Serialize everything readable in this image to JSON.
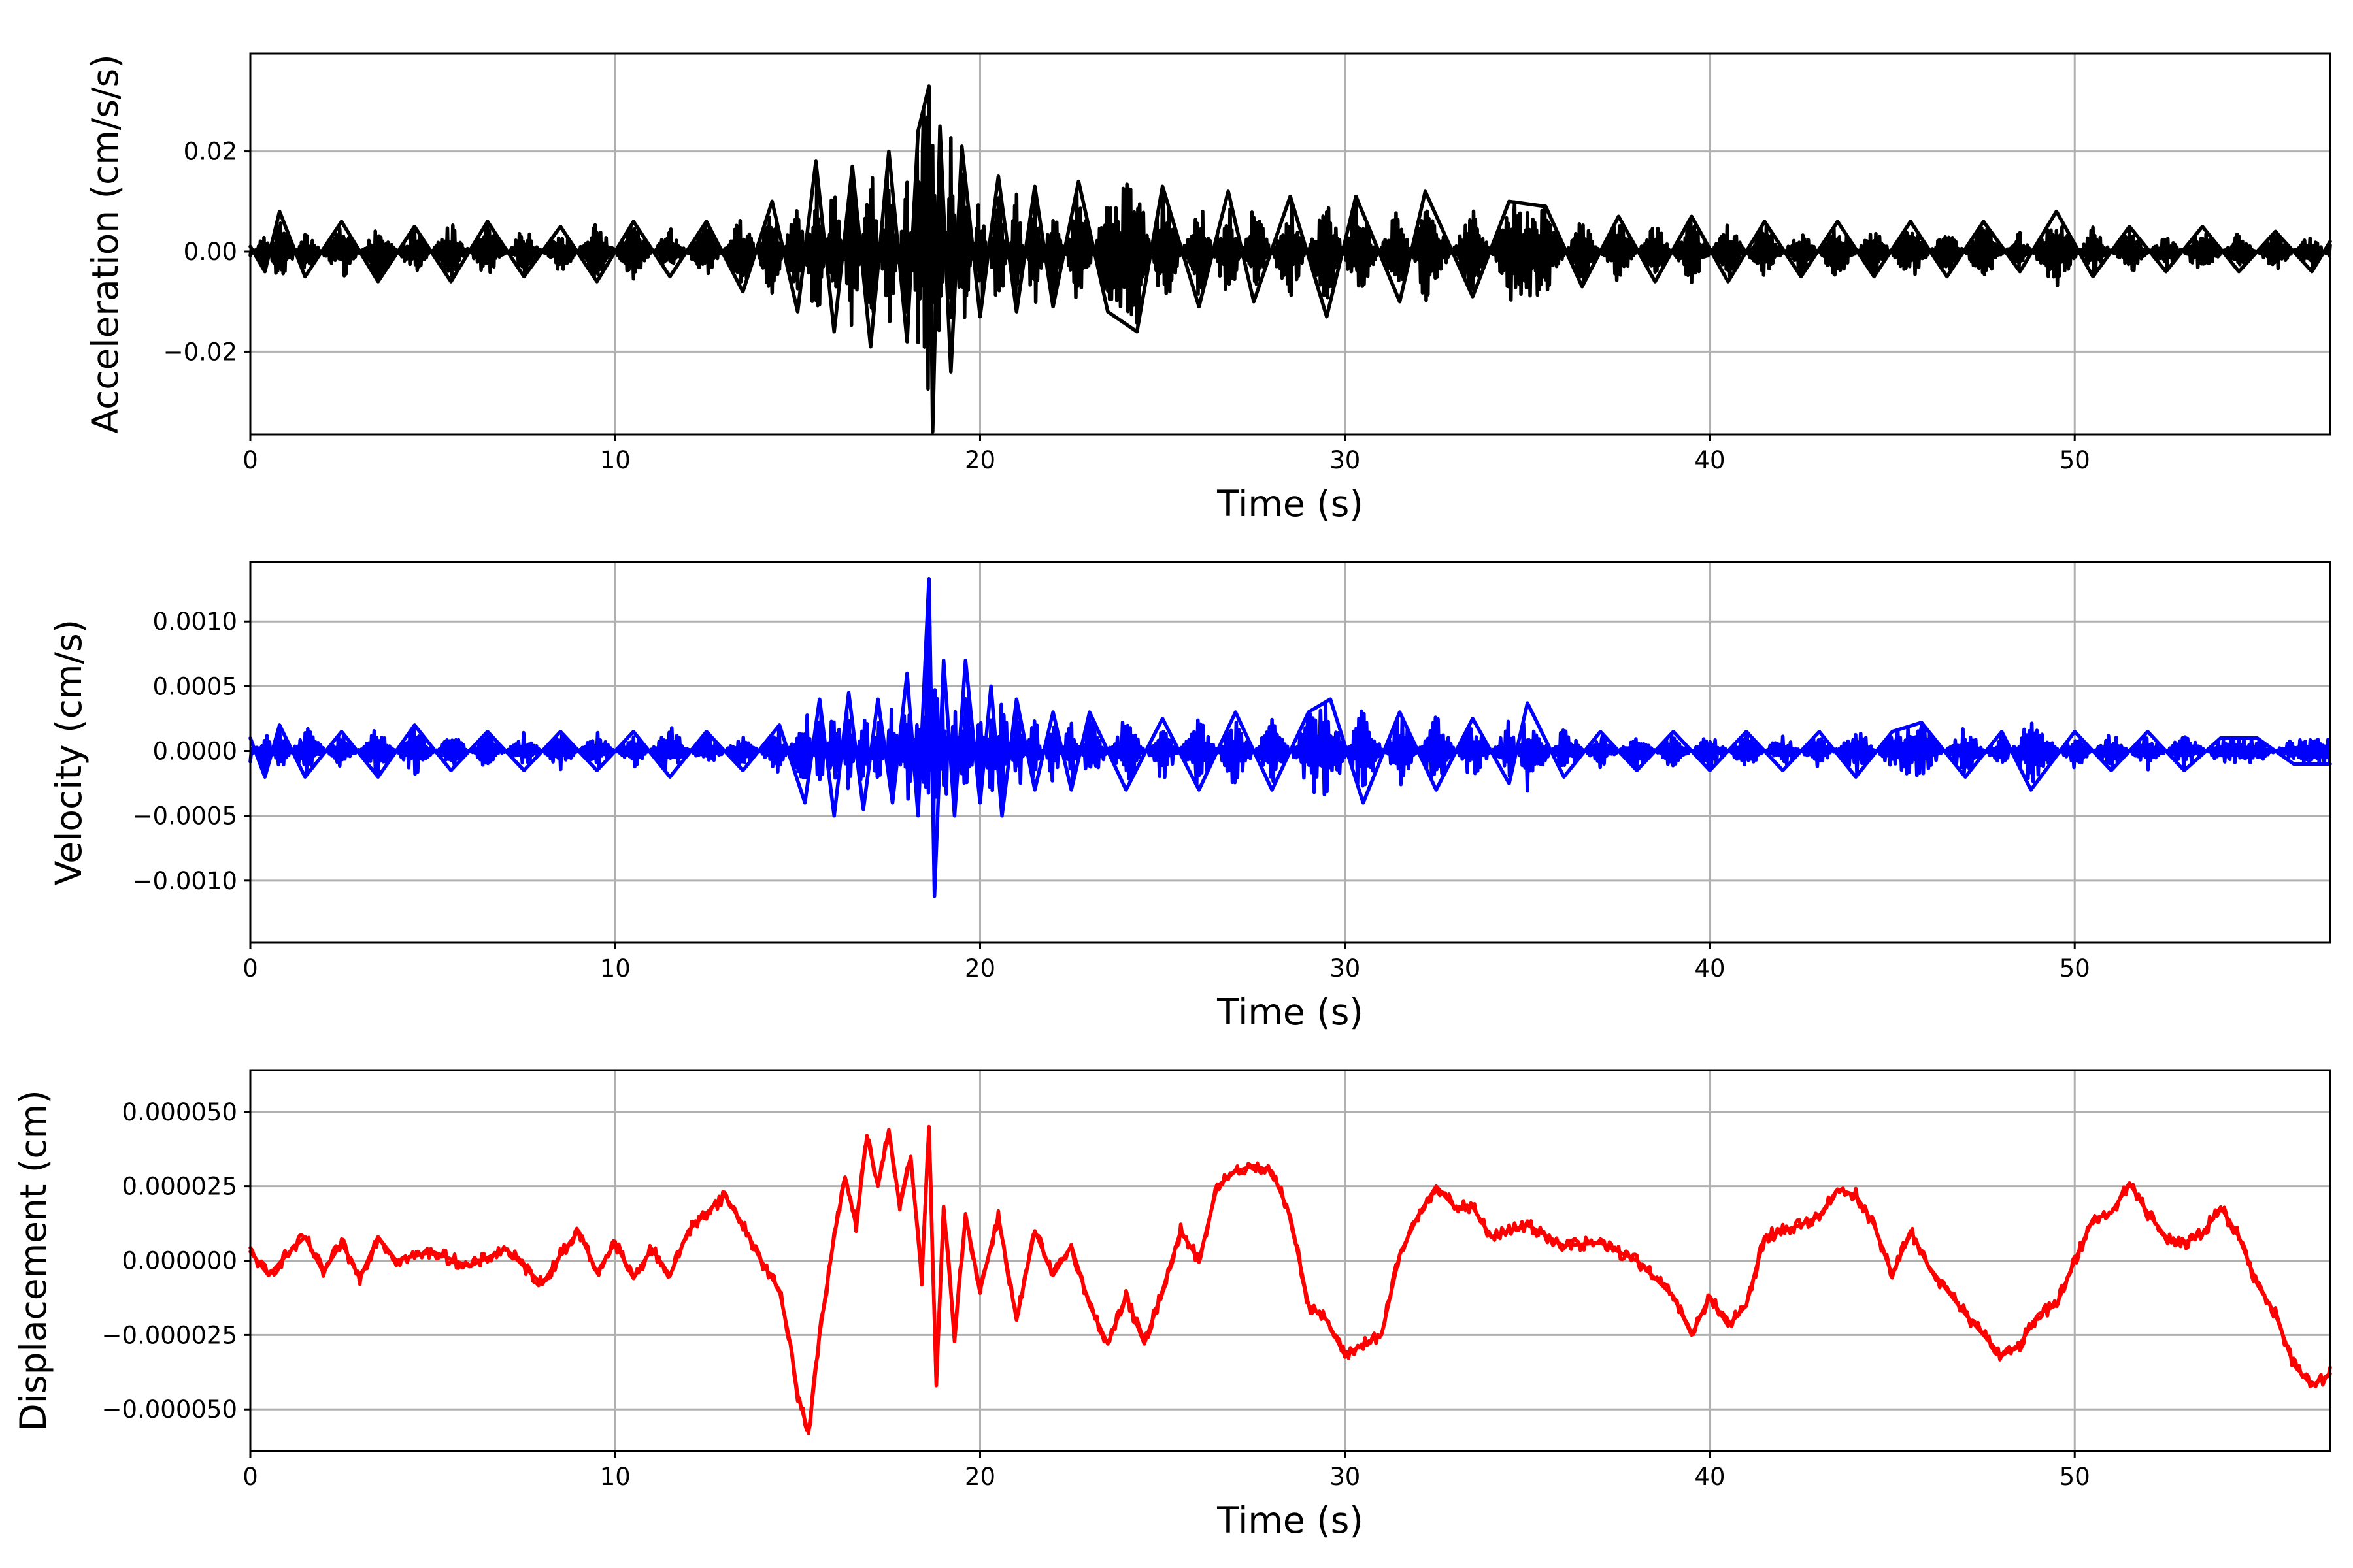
{
  "colors": {
    "acceleration": "#000000",
    "velocity": "#0000ff",
    "displacement": "#ff0000",
    "grid": "#b0b0b0"
  },
  "chart_data": [
    {
      "type": "line",
      "xlabel": "Time (s)",
      "ylabel": "Acceleration (cm/s/s)",
      "xlim": [
        0,
        57
      ],
      "ylim": [
        -0.0365,
        0.0395
      ],
      "xticks": [
        0,
        10,
        20,
        30,
        40,
        50
      ],
      "xtick_labels": [
        "0",
        "10",
        "20",
        "30",
        "40",
        "50"
      ],
      "yticks": [
        -0.02,
        0.0,
        0.02
      ],
      "ytick_labels": [
        "−0.02",
        "0.00",
        "0.02"
      ],
      "grid": true,
      "color": "#000000",
      "x": [
        0.0,
        0.4,
        0.8,
        1.5,
        2.5,
        3.5,
        4.5,
        5.5,
        6.5,
        7.5,
        8.5,
        9.5,
        10.5,
        11.5,
        12.5,
        13.5,
        14.3,
        15.0,
        15.5,
        16.0,
        16.5,
        17.0,
        17.5,
        18.0,
        18.3,
        18.6,
        18.7,
        18.9,
        19.2,
        19.5,
        20.0,
        20.5,
        21.0,
        21.5,
        22.0,
        22.7,
        23.5,
        24.3,
        25.0,
        26.0,
        26.8,
        27.5,
        28.5,
        29.5,
        30.3,
        31.5,
        32.2,
        33.5,
        34.5,
        35.5,
        36.5,
        37.5,
        38.5,
        39.5,
        40.5,
        41.5,
        42.5,
        43.5,
        44.5,
        45.5,
        46.5,
        47.5,
        48.5,
        49.5,
        50.5,
        51.5,
        52.5,
        53.5,
        54.5,
        55.5,
        56.5,
        57.0
      ],
      "y": [
        0.001,
        -0.004,
        0.008,
        -0.005,
        0.006,
        -0.006,
        0.005,
        -0.006,
        0.006,
        -0.005,
        0.005,
        -0.006,
        0.006,
        -0.005,
        0.006,
        -0.008,
        0.01,
        -0.012,
        0.018,
        -0.016,
        0.017,
        -0.019,
        0.02,
        -0.018,
        0.024,
        0.033,
        -0.036,
        0.025,
        -0.024,
        0.021,
        -0.013,
        0.015,
        -0.012,
        0.013,
        -0.011,
        0.014,
        -0.012,
        -0.016,
        0.013,
        -0.011,
        0.012,
        -0.01,
        0.011,
        -0.013,
        0.011,
        -0.01,
        0.012,
        -0.009,
        0.01,
        0.009,
        -0.007,
        0.007,
        -0.006,
        0.007,
        -0.006,
        0.006,
        -0.005,
        0.006,
        -0.005,
        0.006,
        -0.005,
        0.006,
        -0.004,
        0.008,
        -0.005,
        0.005,
        -0.004,
        0.005,
        -0.004,
        0.004,
        -0.004,
        0.002
      ]
    },
    {
      "type": "line",
      "xlabel": "Time (s)",
      "ylabel": "Velocity (cm/s)",
      "xlim": [
        0,
        57
      ],
      "ylim": [
        -0.00148,
        0.00146
      ],
      "xticks": [
        0,
        10,
        20,
        30,
        40,
        50
      ],
      "xtick_labels": [
        "0",
        "10",
        "20",
        "30",
        "40",
        "50"
      ],
      "yticks": [
        -0.001,
        -0.0005,
        0.0,
        0.0005,
        0.001
      ],
      "ytick_labels": [
        "−0.0010",
        "−0.0005",
        "0.0000",
        "0.0005",
        "0.0010"
      ],
      "grid": true,
      "color": "#0000ff",
      "x": [
        0.0,
        0.4,
        0.8,
        1.5,
        2.5,
        3.5,
        4.5,
        5.5,
        6.5,
        7.5,
        8.5,
        9.5,
        10.5,
        11.5,
        12.5,
        13.5,
        14.5,
        15.2,
        15.6,
        16.0,
        16.4,
        16.8,
        17.2,
        17.6,
        18.0,
        18.3,
        18.6,
        18.75,
        19.0,
        19.3,
        19.6,
        20.0,
        20.3,
        20.6,
        21.0,
        21.5,
        22.0,
        22.5,
        23.0,
        24.0,
        25.0,
        26.0,
        27.0,
        28.0,
        29.0,
        29.6,
        30.5,
        31.5,
        32.5,
        33.5,
        34.5,
        35.0,
        36.0,
        37.0,
        38.0,
        39.0,
        40.0,
        41.0,
        42.0,
        43.0,
        44.0,
        45.0,
        45.8,
        47.0,
        48.0,
        48.8,
        50.0,
        51.0,
        52.0,
        53.0,
        54.0,
        55.0,
        56.0,
        57.0
      ],
      "y": [
        0.0001,
        -0.0002,
        0.0002,
        -0.0002,
        0.00015,
        -0.0002,
        0.0002,
        -0.00015,
        0.00015,
        -0.00015,
        0.00015,
        -0.00015,
        0.00015,
        -0.0002,
        0.00015,
        -0.00015,
        0.0002,
        -0.0004,
        0.0004,
        -0.0005,
        0.00045,
        -0.00045,
        0.0004,
        -0.0004,
        0.0006,
        -0.0005,
        0.00133,
        -0.00112,
        0.0007,
        -0.0005,
        0.0007,
        -0.0004,
        0.0005,
        -0.0005,
        0.0004,
        -0.0003,
        0.0003,
        -0.0003,
        0.0003,
        -0.0003,
        0.00025,
        -0.0003,
        0.0003,
        -0.0003,
        0.0003,
        0.0004,
        -0.0004,
        0.0003,
        -0.0003,
        0.00025,
        -0.00025,
        0.00037,
        -0.0002,
        0.00015,
        -0.00015,
        0.00015,
        -0.00015,
        0.00015,
        -0.00015,
        0.00015,
        -0.0002,
        0.00015,
        0.00022,
        -0.0002,
        0.00015,
        -0.0003,
        0.00015,
        -0.00015,
        0.00015,
        -0.00015,
        0.0001,
        0.0001,
        -0.0001,
        -0.0001
      ]
    },
    {
      "type": "line",
      "xlabel": "Time (s)",
      "ylabel": "Displacement (cm)",
      "xlim": [
        0,
        57
      ],
      "ylim": [
        -6.4e-05,
        6.4e-05
      ],
      "xticks": [
        0,
        10,
        20,
        30,
        40,
        50
      ],
      "xtick_labels": [
        "0",
        "10",
        "20",
        "30",
        "40",
        "50"
      ],
      "yticks": [
        -5e-05,
        -2.5e-05,
        0.0,
        2.5e-05,
        5e-05
      ],
      "ytick_labels": [
        "−0.000050",
        "−0.000025",
        "0.000000",
        "0.000025",
        "0.000050"
      ],
      "grid": true,
      "color": "#ff0000",
      "x": [
        0.0,
        0.5,
        1.0,
        1.5,
        2.0,
        2.5,
        3.0,
        3.5,
        4.0,
        5.0,
        6.0,
        7.0,
        8.0,
        8.5,
        9.0,
        9.5,
        10.0,
        10.5,
        11.0,
        11.5,
        12.0,
        12.5,
        13.0,
        13.5,
        14.0,
        14.5,
        14.8,
        15.0,
        15.3,
        15.6,
        16.0,
        16.3,
        16.6,
        16.9,
        17.2,
        17.5,
        17.8,
        18.1,
        18.4,
        18.6,
        18.8,
        19.0,
        19.3,
        19.6,
        20.0,
        20.5,
        21.0,
        21.5,
        22.0,
        22.5,
        23.0,
        23.5,
        24.0,
        24.5,
        25.0,
        25.5,
        26.0,
        26.5,
        27.0,
        27.5,
        28.0,
        28.5,
        29.0,
        29.5,
        30.0,
        30.5,
        31.0,
        31.5,
        32.0,
        32.5,
        33.0,
        33.5,
        34.0,
        35.0,
        36.0,
        37.0,
        38.0,
        39.0,
        39.5,
        40.0,
        40.5,
        41.0,
        41.5,
        42.0,
        42.5,
        43.0,
        43.5,
        44.0,
        44.5,
        45.0,
        45.5,
        46.0,
        46.5,
        47.0,
        47.5,
        48.0,
        48.5,
        49.0,
        49.5,
        50.0,
        50.5,
        51.0,
        51.5,
        52.0,
        52.5,
        53.0,
        53.5,
        54.0,
        54.5,
        55.0,
        55.5,
        56.0,
        56.5,
        57.0
      ],
      "y": [
        3e-06,
        -5e-06,
        2e-06,
        8e-06,
        -4e-06,
        6e-06,
        -6e-06,
        8e-06,
        0.0,
        3e-06,
        -2e-06,
        4e-06,
        -8e-06,
        2e-06,
        1e-05,
        -4e-06,
        6e-06,
        -6e-06,
        4e-06,
        -5e-06,
        1e-05,
        1.6e-05,
        2.2e-05,
        1.2e-05,
        0.0,
        -1e-05,
        -2.8e-05,
        -4.5e-05,
        -5.8e-05,
        -2.5e-05,
        8e-06,
        2.8e-05,
        1.2e-05,
        4.2e-05,
        2.5e-05,
        4.4e-05,
        1.8e-05,
        3.5e-05,
        -6e-06,
        4.5e-05,
        -4.2e-05,
        1.8e-05,
        -2.5e-05,
        1.5e-05,
        -1e-05,
        1.5e-05,
        -2e-05,
        1e-05,
        -5e-06,
        5e-06,
        -1.5e-05,
        -2.8e-05,
        -1.2e-05,
        -2.8e-05,
        -1e-05,
        1e-05,
        0.0,
        2.5e-05,
        3e-05,
        3.2e-05,
        3e-05,
        1.5e-05,
        -1.5e-05,
        -2e-05,
        -3.2e-05,
        -2.8e-05,
        -2.5e-05,
        2e-06,
        1.5e-05,
        2.5e-05,
        1.8e-05,
        1.8e-05,
        8e-06,
        1.2e-05,
        5e-06,
        6e-06,
        0.0,
        -1.2e-05,
        -2.5e-05,
        -1.2e-05,
        -2.2e-05,
        -1.5e-05,
        8e-06,
        1e-05,
        1.2e-05,
        1.5e-05,
        2.4e-05,
        2.2e-05,
        1.2e-05,
        -5e-06,
        1e-05,
        -2e-06,
        -1e-05,
        -1.8e-05,
        -2.5e-05,
        -3.2e-05,
        -2.8e-05,
        -1.8e-05,
        -1.5e-05,
        0.0,
        1.4e-05,
        1.6e-05,
        2.6e-05,
        1.6e-05,
        8e-06,
        6e-06,
        9e-06,
        1.8e-05,
        8e-06,
        -8e-06,
        -1.8e-05,
        -3.5e-05,
        -4.2e-05,
        -3.8e-05
      ]
    }
  ]
}
